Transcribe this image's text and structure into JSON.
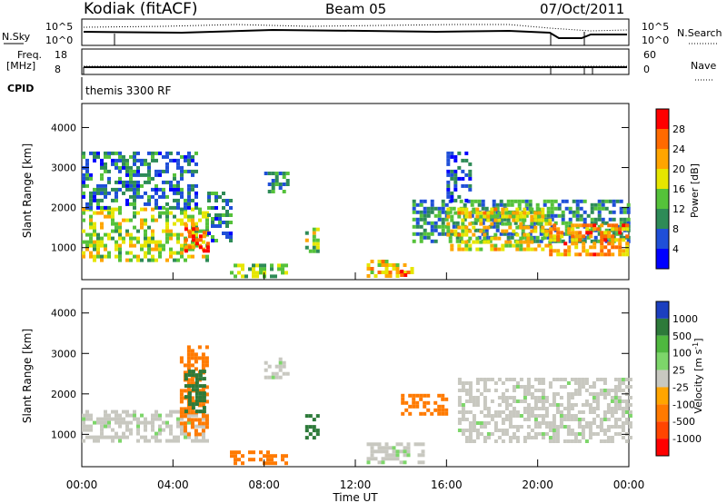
{
  "header": {
    "station": "Kodiak (fitACF)",
    "beam": "Beam 05",
    "date": "07/Oct/2011"
  },
  "status_panels": {
    "nsky_label": "N.Sky",
    "nsearch_label": "N.Search",
    "noise_ticks_left": [
      "10^5",
      "10^0"
    ],
    "noise_ticks_right": [
      "10^5",
      "10^0"
    ],
    "freq_label": "Freq.",
    "freq_unit": "[MHz]",
    "freq_ticks": [
      "18",
      "8"
    ],
    "nave_label": "Nave",
    "nave_ticks": [
      "60",
      "0"
    ],
    "cpid_label": "CPID",
    "cpid_value": "themis 3300 RF"
  },
  "chart_data": [
    {
      "type": "heatmap",
      "name": "Power",
      "ylabel": "Slant Range [km]",
      "ylim": [
        200,
        4600
      ],
      "yticks": [
        1000,
        2000,
        3000,
        4000
      ],
      "xlim": [
        "00:00",
        "24:00"
      ],
      "colorbar": {
        "label": "Power [dB]",
        "ticks": [
          "4",
          "8",
          "12",
          "16",
          "20",
          "24",
          "28"
        ],
        "range": [
          0,
          31
        ],
        "colors": [
          "#0000ff",
          "#1f4fd8",
          "#2e8b57",
          "#55c23a",
          "#e6e600",
          "#ffa500",
          "#ff6a00",
          "#ff0000"
        ]
      },
      "echo_regions": [
        {
          "x": [
            0.0,
            5.5
          ],
          "y": [
            700,
            2000
          ],
          "value": 16
        },
        {
          "x": [
            0.0,
            5.0
          ],
          "y": [
            2000,
            3400
          ],
          "value": 8
        },
        {
          "x": [
            4.5,
            5.5
          ],
          "y": [
            900,
            1600
          ],
          "value": 26
        },
        {
          "x": [
            5.5,
            6.5
          ],
          "y": [
            1200,
            2400
          ],
          "value": 8
        },
        {
          "x": [
            8.0,
            9.0
          ],
          "y": [
            2400,
            2900
          ],
          "value": 10
        },
        {
          "x": [
            6.5,
            9.0
          ],
          "y": [
            300,
            600
          ],
          "value": 14
        },
        {
          "x": [
            9.8,
            10.4
          ],
          "y": [
            900,
            1500
          ],
          "value": 16
        },
        {
          "x": [
            12.5,
            14.5
          ],
          "y": [
            300,
            700
          ],
          "value": 20
        },
        {
          "x": [
            13.8,
            14.2
          ],
          "y": [
            300,
            450
          ],
          "value": 28
        },
        {
          "x": [
            14.5,
            24.0
          ],
          "y": [
            1200,
            2200
          ],
          "value": 10
        },
        {
          "x": [
            16.0,
            20.5
          ],
          "y": [
            1000,
            2000
          ],
          "value": 18
        },
        {
          "x": [
            20.5,
            24.0
          ],
          "y": [
            800,
            1600
          ],
          "value": 22
        },
        {
          "x": [
            16.0,
            17.0
          ],
          "y": [
            2200,
            3400
          ],
          "value": 6
        }
      ]
    },
    {
      "type": "heatmap",
      "name": "Velocity",
      "ylabel": "Slant Range [km]",
      "xlabel": "Time UT",
      "ylim": [
        200,
        4600
      ],
      "yticks": [
        1000,
        2000,
        3000,
        4000
      ],
      "xticks": [
        "00:00",
        "04:00",
        "08:00",
        "12:00",
        "16:00",
        "20:00",
        "00:00"
      ],
      "colorbar": {
        "label": "Velocity [m s^-1]",
        "ticks": [
          "1000",
          "500",
          "100",
          "25",
          "-25",
          "-100",
          "-500",
          "-1000"
        ],
        "colors": [
          "#1c3fbf",
          "#2d7a3a",
          "#4fb83f",
          "#7dd66a",
          "#c8c8c0",
          "#ffa500",
          "#ff7a00",
          "#ff4500",
          "#ff0000"
        ]
      },
      "echo_regions": [
        {
          "x": [
            0.0,
            5.5
          ],
          "y": [
            800,
            1600
          ],
          "value": 0
        },
        {
          "x": [
            4.3,
            5.5
          ],
          "y": [
            1000,
            3200
          ],
          "value": -200
        },
        {
          "x": [
            4.5,
            5.3
          ],
          "y": [
            1600,
            2600
          ],
          "value": 200
        },
        {
          "x": [
            8.0,
            9.0
          ],
          "y": [
            2400,
            2900
          ],
          "value": 0
        },
        {
          "x": [
            6.5,
            9.0
          ],
          "y": [
            300,
            600
          ],
          "value": -200
        },
        {
          "x": [
            9.8,
            10.4
          ],
          "y": [
            900,
            1500
          ],
          "value": 200
        },
        {
          "x": [
            14.0,
            16.0
          ],
          "y": [
            1500,
            2000
          ],
          "value": -300
        },
        {
          "x": [
            16.5,
            24.0
          ],
          "y": [
            800,
            2400
          ],
          "value": 0
        },
        {
          "x": [
            12.5,
            15.0
          ],
          "y": [
            300,
            800
          ],
          "value": 0
        }
      ]
    }
  ]
}
